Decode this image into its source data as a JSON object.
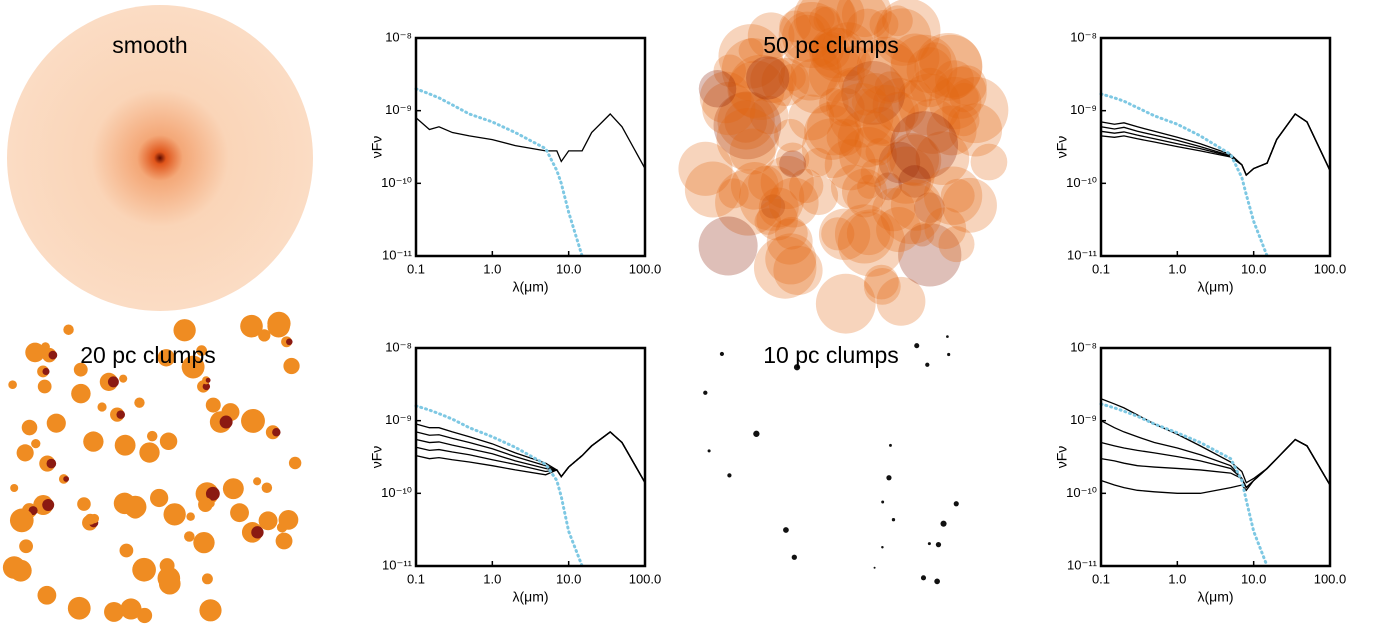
{
  "image_panels": [
    {
      "label": "smooth"
    },
    {
      "label": "50 pc clumps"
    },
    {
      "label": "20 pc clumps"
    },
    {
      "label": "10 pc clumps"
    }
  ],
  "chart_data": [
    {
      "type": "line",
      "xscale": "log",
      "yscale": "log",
      "xlabel": "λ(μm)",
      "ylabel": "νFν",
      "x": [
        0.1,
        0.15,
        0.2,
        0.3,
        0.5,
        1,
        2,
        5,
        7,
        8,
        10,
        15,
        20,
        35,
        50,
        100
      ],
      "xlim": [
        0.1,
        100
      ],
      "ylim": [
        1e-11,
        1e-08
      ],
      "xticks": [
        0.1,
        {
          "value": 1,
          "label": "1.0"
        },
        {
          "value": 10,
          "label": "10.0"
        },
        {
          "value": 100,
          "label": "100.0"
        }
      ],
      "yticks": [
        {
          "value": 1e-08,
          "label": "10⁻⁸"
        },
        {
          "value": 1e-09,
          "label": "10⁻⁹"
        },
        {
          "value": 1e-10,
          "label": "10⁻¹⁰"
        },
        {
          "value": 1e-11,
          "label": "10⁻¹¹"
        }
      ],
      "series": [
        {
          "color": "#000000",
          "values": [
            8e-10,
            5.5e-10,
            6e-10,
            5e-10,
            4.5e-10,
            4e-10,
            3.3e-10,
            2.8e-10,
            2.8e-10,
            2e-10,
            2.8e-10,
            2.8e-10,
            5e-10,
            9e-10,
            6e-10,
            1.6e-10
          ]
        },
        {
          "color": "#7ec8e3",
          "style": "dotted",
          "values": [
            2e-09,
            1.7e-09,
            1.5e-09,
            1.2e-09,
            9e-10,
            7e-10,
            5e-10,
            3e-10,
            1.5e-10,
            1e-10,
            4e-11,
            1e-11,
            null,
            null,
            null,
            null
          ]
        }
      ]
    },
    {
      "type": "line",
      "xscale": "log",
      "yscale": "log",
      "xlabel": "λ(μm)",
      "ylabel": "νFν",
      "x": [
        0.1,
        0.15,
        0.2,
        0.3,
        0.5,
        1,
        2,
        5,
        7,
        8,
        10,
        15,
        20,
        35,
        50,
        100
      ],
      "xlim": [
        0.1,
        100
      ],
      "ylim": [
        1e-11,
        1e-08
      ],
      "xticks": [
        0.1,
        {
          "value": 1,
          "label": "1.0"
        },
        {
          "value": 10,
          "label": "10.0"
        },
        {
          "value": 100,
          "label": "100.0"
        }
      ],
      "yticks": [
        {
          "value": 1e-08,
          "label": "10⁻⁸"
        },
        {
          "value": 1e-09,
          "label": "10⁻⁹"
        },
        {
          "value": 1e-10,
          "label": "10⁻¹⁰"
        },
        {
          "value": 1e-11,
          "label": "10⁻¹¹"
        }
      ],
      "series": [
        {
          "color": "#000000",
          "values": [
            7e-10,
            6.5e-10,
            6.8e-10,
            6e-10,
            5.2e-10,
            4.3e-10,
            3.5e-10,
            2.5e-10,
            1.8e-10,
            1.3e-10,
            1.6e-10,
            1.9e-10,
            4e-10,
            9e-10,
            7e-10,
            1.5e-10
          ]
        },
        {
          "color": "#000000",
          "values": [
            6e-10,
            5.6e-10,
            5.9e-10,
            5.2e-10,
            4.6e-10,
            3.9e-10,
            3.2e-10,
            2.4e-10,
            1.8e-10,
            1.3e-10,
            1.6e-10,
            1.9e-10,
            4e-10,
            9e-10,
            7e-10,
            1.5e-10
          ]
        },
        {
          "color": "#000000",
          "values": [
            5.2e-10,
            4.9e-10,
            5.1e-10,
            4.6e-10,
            4.1e-10,
            3.5e-10,
            3e-10,
            2.35e-10,
            1.8e-10,
            1.3e-10,
            1.6e-10,
            1.9e-10,
            4e-10,
            9e-10,
            7e-10,
            1.5e-10
          ]
        },
        {
          "color": "#000000",
          "values": [
            4.5e-10,
            4.3e-10,
            4.5e-10,
            4.1e-10,
            3.7e-10,
            3.2e-10,
            2.8e-10,
            2.3e-10,
            1.8e-10,
            1.3e-10,
            1.6e-10,
            1.9e-10,
            4e-10,
            9e-10,
            7e-10,
            1.5e-10
          ]
        },
        {
          "color": "#7ec8e3",
          "style": "dotted",
          "values": [
            1.7e-09,
            1.5e-09,
            1.35e-09,
            1.1e-09,
            8.5e-10,
            6.5e-10,
            4.5e-10,
            2.5e-10,
            1.2e-10,
            7e-11,
            3e-11,
            1e-11,
            null,
            null,
            null,
            null
          ]
        }
      ]
    },
    {
      "type": "line",
      "xscale": "log",
      "yscale": "log",
      "xlabel": "λ(μm)",
      "ylabel": "νFν",
      "x": [
        0.1,
        0.15,
        0.2,
        0.3,
        0.5,
        1,
        2,
        5,
        7,
        8,
        10,
        15,
        20,
        35,
        50,
        100
      ],
      "xlim": [
        0.1,
        100
      ],
      "ylim": [
        1e-11,
        1e-08
      ],
      "xticks": [
        0.1,
        {
          "value": 1,
          "label": "1.0"
        },
        {
          "value": 10,
          "label": "10.0"
        },
        {
          "value": 100,
          "label": "100.0"
        }
      ],
      "yticks": [
        {
          "value": 1e-08,
          "label": "10⁻⁸"
        },
        {
          "value": 1e-09,
          "label": "10⁻⁹"
        },
        {
          "value": 1e-10,
          "label": "10⁻¹⁰"
        },
        {
          "value": 1e-11,
          "label": "10⁻¹¹"
        }
      ],
      "series": [
        {
          "color": "#000000",
          "values": [
            9e-10,
            8e-10,
            8e-10,
            7e-10,
            6e-10,
            4.8e-10,
            3.6e-10,
            2.6e-10,
            2.1e-10,
            1.7e-10,
            2.3e-10,
            3.3e-10,
            4.5e-10,
            7e-10,
            5e-10,
            1.4e-10
          ]
        },
        {
          "color": "#000000",
          "values": [
            7e-10,
            6.3e-10,
            6.4e-10,
            5.7e-10,
            5e-10,
            4.1e-10,
            3.2e-10,
            2.4e-10,
            2.1e-10,
            1.7e-10,
            2.3e-10,
            3.3e-10,
            4.5e-10,
            7e-10,
            5e-10,
            1.4e-10
          ]
        },
        {
          "color": "#000000",
          "values": [
            5.5e-10,
            5e-10,
            5.1e-10,
            4.6e-10,
            4.1e-10,
            3.5e-10,
            2.8e-10,
            2.2e-10,
            2.1e-10,
            1.7e-10,
            2.3e-10,
            3.3e-10,
            4.5e-10,
            7e-10,
            5e-10,
            1.4e-10
          ]
        },
        {
          "color": "#000000",
          "values": [
            4.3e-10,
            3.9e-10,
            4e-10,
            3.7e-10,
            3.4e-10,
            2.9e-10,
            2.5e-10,
            2e-10,
            2.1e-10,
            1.7e-10,
            2.3e-10,
            3.3e-10,
            4.5e-10,
            7e-10,
            5e-10,
            1.4e-10
          ]
        },
        {
          "color": "#000000",
          "values": [
            3.3e-10,
            3e-10,
            3.1e-10,
            2.9e-10,
            2.7e-10,
            2.4e-10,
            2.1e-10,
            1.8e-10,
            2.1e-10,
            1.7e-10,
            2.3e-10,
            3.3e-10,
            4.5e-10,
            7e-10,
            5e-10,
            1.4e-10
          ]
        },
        {
          "color": "#7ec8e3",
          "style": "dotted",
          "values": [
            1.6e-09,
            1.4e-09,
            1.25e-09,
            1.05e-09,
            8e-10,
            6e-10,
            4.3e-10,
            2.5e-10,
            1.5e-10,
            9e-11,
            3e-11,
            1e-11,
            null,
            null,
            null,
            null
          ]
        }
      ]
    },
    {
      "type": "line",
      "xscale": "log",
      "yscale": "log",
      "xlabel": "λ(μm)",
      "ylabel": "νFν",
      "x": [
        0.1,
        0.15,
        0.2,
        0.3,
        0.5,
        1,
        2,
        5,
        7,
        8,
        10,
        15,
        20,
        35,
        50,
        100
      ],
      "xlim": [
        0.1,
        100
      ],
      "ylim": [
        1e-11,
        1e-08
      ],
      "xticks": [
        0.1,
        {
          "value": 1,
          "label": "1.0"
        },
        {
          "value": 10,
          "label": "10.0"
        },
        {
          "value": 100,
          "label": "100.0"
        }
      ],
      "yticks": [
        {
          "value": 1e-08,
          "label": "10⁻⁸"
        },
        {
          "value": 1e-09,
          "label": "10⁻⁹"
        },
        {
          "value": 1e-10,
          "label": "10⁻¹⁰"
        },
        {
          "value": 1e-11,
          "label": "10⁻¹¹"
        }
      ],
      "series": [
        {
          "color": "#000000",
          "values": [
            2e-09,
            1.7e-09,
            1.5e-09,
            1.2e-09,
            9e-10,
            6.5e-10,
            4.5e-10,
            2.7e-10,
            2e-10,
            1.4e-10,
            1.6e-10,
            2.2e-10,
            3e-10,
            5.5e-10,
            4.5e-10,
            1.3e-10
          ]
        },
        {
          "color": "#000000",
          "values": [
            1e-09,
            8e-10,
            7e-10,
            6e-10,
            5e-10,
            4.2e-10,
            3.4e-10,
            2.4e-10,
            1.6e-10,
            1.2e-10,
            1.5e-10,
            2.2e-10,
            3e-10,
            5.5e-10,
            4.5e-10,
            1.3e-10
          ]
        },
        {
          "color": "#000000",
          "values": [
            5e-10,
            4.5e-10,
            4.2e-10,
            3.9e-10,
            3.6e-10,
            3.2e-10,
            2.8e-10,
            2.2e-10,
            1.6e-10,
            1.2e-10,
            1.5e-10,
            2.2e-10,
            3e-10,
            5.5e-10,
            4.5e-10,
            1.3e-10
          ]
        },
        {
          "color": "#000000",
          "values": [
            3e-10,
            2.8e-10,
            2.6e-10,
            2.4e-10,
            2.3e-10,
            2.2e-10,
            2.1e-10,
            1.9e-10,
            1.6e-10,
            1.2e-10,
            1.5e-10,
            2.2e-10,
            3e-10,
            5.5e-10,
            4.5e-10,
            1.3e-10
          ]
        },
        {
          "color": "#000000",
          "values": [
            1.5e-10,
            1.3e-10,
            1.2e-10,
            1.1e-10,
            1.05e-10,
            1e-10,
            1e-10,
            1.2e-10,
            1.3e-10,
            1.1e-10,
            1.5e-10,
            2.2e-10,
            3e-10,
            5.5e-10,
            4.5e-10,
            1.3e-10
          ]
        },
        {
          "color": "#7ec8e3",
          "style": "dotted",
          "values": [
            1.7e-09,
            1.5e-09,
            1.35e-09,
            1.15e-09,
            9e-10,
            6.8e-10,
            5e-10,
            3e-10,
            1.5e-10,
            8e-11,
            3e-11,
            1e-11,
            null,
            null,
            null,
            null
          ]
        }
      ]
    }
  ]
}
